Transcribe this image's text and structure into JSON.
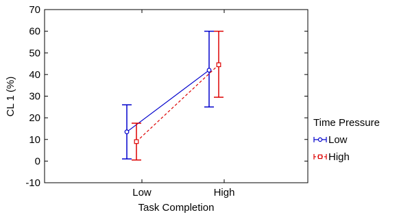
{
  "chart_data": {
    "type": "line",
    "xlabel": "Task Completion",
    "ylabel": "CL 1 (%)",
    "ylim": [
      -10,
      70
    ],
    "yticks": [
      -10,
      0,
      10,
      20,
      30,
      40,
      50,
      60,
      70
    ],
    "categories": [
      "Low",
      "High"
    ],
    "grid": false,
    "legend": {
      "title": "Time Pressure",
      "placement": "right"
    },
    "series": [
      {
        "name": "Low",
        "color": "#0000cc",
        "marker": "circle",
        "line_style": "solid",
        "values": [
          13.5,
          42
        ],
        "lower": [
          1,
          25
        ],
        "upper": [
          26,
          60
        ]
      },
      {
        "name": "High",
        "color": "#dd0000",
        "marker": "square",
        "line_style": "dashed",
        "values": [
          9,
          44.5
        ],
        "lower": [
          0.5,
          29.5
        ],
        "upper": [
          17.5,
          60
        ]
      }
    ]
  }
}
